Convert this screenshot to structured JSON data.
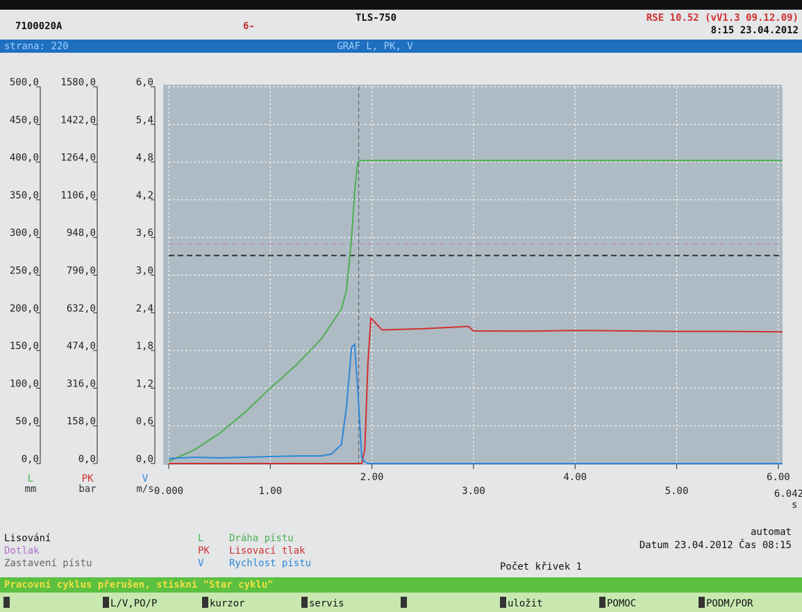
{
  "header": {
    "id": "7100020A",
    "key": "6-",
    "machine": "TLS-750",
    "version": "RSE 10.52 (vV1.3 09.12.09)",
    "clock": "8:15 23.04.2012"
  },
  "titlebar": {
    "page": "strana: 220",
    "title": "GRAF L, PK, V"
  },
  "chart_data": {
    "type": "line",
    "x": [
      0,
      0.25,
      0.5,
      0.75,
      1.0,
      1.25,
      1.5,
      1.6,
      1.7,
      1.75,
      1.8,
      1.83,
      1.86,
      1.9,
      1.93,
      1.96,
      1.99,
      2.1,
      2.5,
      2.95,
      3.0,
      3.5,
      4.0,
      4.5,
      5.0,
      5.5,
      6.042
    ],
    "series": [
      {
        "name": "Dráha pístu",
        "color": "#4caf50",
        "axis": "y",
        "values": [
          3,
          18,
          40,
          68,
          100,
          130,
          165,
          185,
          205,
          230,
          300,
          360,
          400,
          402,
          402,
          402,
          402,
          402,
          402,
          402,
          402,
          402,
          402,
          402,
          402,
          402,
          402
        ]
      },
      {
        "name": "Lisovací tlak",
        "color": "#d03030",
        "axis": "y2",
        "values": [
          0,
          0,
          0,
          0,
          0,
          0,
          0,
          0,
          0,
          0,
          0,
          0,
          0,
          0,
          60,
          420,
          610,
          560,
          565,
          575,
          556,
          555,
          558,
          556,
          554,
          554,
          552
        ]
      },
      {
        "name": "Rychlost pístu",
        "color": "#2e86d8",
        "axis": "y3",
        "values": [
          0.08,
          0.1,
          0.09,
          0.1,
          0.11,
          0.12,
          0.12,
          0.15,
          0.3,
          0.9,
          1.85,
          1.9,
          1.2,
          0.1,
          0.02,
          0,
          0,
          0,
          0,
          0,
          0,
          0,
          0,
          0,
          0,
          0,
          0
        ]
      }
    ],
    "xlim": [
      0,
      6.042
    ],
    "x_label": "s",
    "xticks": [
      {
        "value": 0,
        "label": "0.000"
      },
      {
        "value": 1,
        "label": "1.00"
      },
      {
        "value": 2,
        "label": "2.00"
      },
      {
        "value": 3,
        "label": "3.00"
      },
      {
        "value": 4,
        "label": "4.00"
      },
      {
        "value": 5,
        "label": "5.00"
      },
      {
        "value": 6,
        "label": "6.00"
      }
    ],
    "y_label": "L",
    "y_unit": "mm",
    "ylim": [
      0,
      500
    ],
    "yticks": [
      {
        "value": 0,
        "label": "0,0"
      },
      {
        "value": 50,
        "label": "50,0"
      },
      {
        "value": 100,
        "label": "100,0"
      },
      {
        "value": 150,
        "label": "150,0"
      },
      {
        "value": 200,
        "label": "200,0"
      },
      {
        "value": 250,
        "label": "250,0"
      },
      {
        "value": 300,
        "label": "300,0"
      },
      {
        "value": 350,
        "label": "350,0"
      },
      {
        "value": 400,
        "label": "400,0"
      },
      {
        "value": 450,
        "label": "450,0"
      },
      {
        "value": 500,
        "label": "500,0"
      }
    ],
    "y2_label": "PK",
    "y2_unit": "bar",
    "y2lim": [
      0,
      1580
    ],
    "y2ticks": [
      {
        "value": 0,
        "label": "0,0"
      },
      {
        "value": 158,
        "label": "158,0"
      },
      {
        "value": 316,
        "label": "316,0"
      },
      {
        "value": 474,
        "label": "474,0"
      },
      {
        "value": 632,
        "label": "632,0"
      },
      {
        "value": 790,
        "label": "790,0"
      },
      {
        "value": 948,
        "label": "948,0"
      },
      {
        "value": 1106,
        "label": "1106,0"
      },
      {
        "value": 1264,
        "label": "1264,0"
      },
      {
        "value": 1422,
        "label": "1422,0"
      },
      {
        "value": 1580,
        "label": "1580,0"
      }
    ],
    "y3_label": "V",
    "y3_unit": "m/s",
    "y3lim": [
      0,
      6.0
    ],
    "y3ticks": [
      {
        "value": 0,
        "label": "0,0"
      },
      {
        "value": 0.6,
        "label": "0,6"
      },
      {
        "value": 1.2,
        "label": "1,2"
      },
      {
        "value": 1.8,
        "label": "1,8"
      },
      {
        "value": 2.4,
        "label": "2,4"
      },
      {
        "value": 3.0,
        "label": "3,0"
      },
      {
        "value": 3.6,
        "label": "3,6"
      },
      {
        "value": 4.2,
        "label": "4,2"
      },
      {
        "value": 4.8,
        "label": "4,8"
      },
      {
        "value": 5.4,
        "label": "5,4"
      },
      {
        "value": 6.0,
        "label": "6,0"
      }
    ],
    "grid": true,
    "reference_lines": [
      {
        "value": 291,
        "color": "#b89ac8"
      },
      {
        "value": 276,
        "color": "#333333"
      }
    ],
    "cursor_x": 1.87
  },
  "modes": [
    "Lisování",
    "Dotlak",
    "Zastavení pístu"
  ],
  "info": {
    "mode": "automat",
    "datetime": "Datum 23.04.2012 Čas 08:15",
    "curves": "Počet křivek 1"
  },
  "status": "Pracovní cyklus přerušen, stiskni \"Star cyklu\"",
  "fkeys": [
    "L/V,PO/P",
    "kurzor",
    "servis",
    "uložit",
    "POMOC",
    "PODM/POR"
  ]
}
